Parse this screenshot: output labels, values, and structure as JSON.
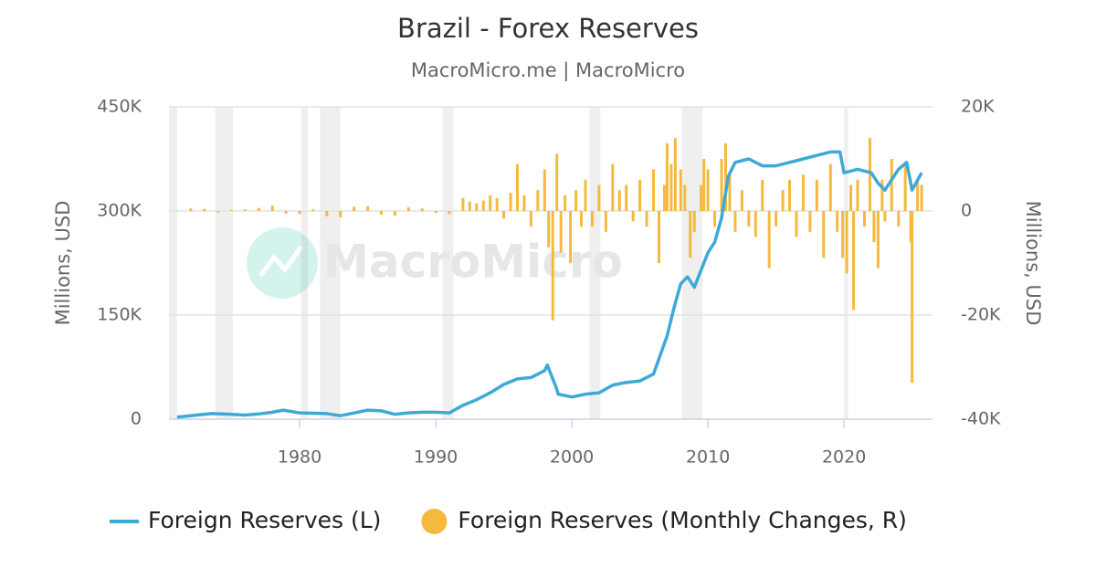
{
  "chart_data": {
    "type": "combo",
    "title": "Brazil - Forex Reserves",
    "subtitle": "MacroMicro.me | MacroMicro",
    "watermark": "MacroMicro",
    "y_label": "Millions, USD",
    "y2_label": "Millions, USD",
    "xlim": [
      1970.4,
      2026.5
    ],
    "xticks": [
      1980,
      1990,
      2000,
      2010,
      2020
    ],
    "ylim": [
      0,
      450000
    ],
    "yticks": [
      0,
      {
        "value": 150000,
        "label": "150K"
      },
      {
        "value": 300000,
        "label": "300K"
      },
      {
        "value": 450000,
        "label": "450K"
      }
    ],
    "y2lim": [
      -40000,
      20000
    ],
    "y2ticks": [
      {
        "value": -40000,
        "label": "-40K"
      },
      {
        "value": -20000,
        "label": "-20K"
      },
      0,
      {
        "value": 20000,
        "label": "20K"
      }
    ],
    "grid": true,
    "shaded_periods": [
      [
        1970.4,
        1971.0
      ],
      [
        1973.8,
        1975.1
      ],
      [
        1980.1,
        1980.6
      ],
      [
        1981.5,
        1983.0
      ],
      [
        1990.5,
        1991.3
      ],
      [
        2001.3,
        2002.1
      ],
      [
        2008.1,
        2009.6
      ],
      [
        2020.0,
        2020.3
      ]
    ],
    "series": [
      {
        "name": "Foreign Reserves (L)",
        "type": "line",
        "color": "#3fa9d6",
        "x": [
          1971,
          1973.5,
          1975,
          1976,
          1977,
          1978,
          1978.8,
          1980,
          1982,
          1983,
          1984,
          1985,
          1986,
          1987,
          1988,
          1989,
          1990,
          1991,
          1992,
          1993,
          1994,
          1995,
          1996,
          1997,
          1998,
          1998.2,
          1998.9,
          1999,
          2000,
          2001,
          2002,
          2003,
          2004,
          2005,
          2006,
          2007,
          2007.5,
          2008,
          2008.5,
          2009,
          2009.5,
          2010,
          2010.5,
          2011,
          2011.5,
          2012,
          2013,
          2014,
          2015,
          2016,
          2017,
          2018,
          2019,
          2019.7,
          2020,
          2021,
          2022,
          2022.5,
          2023,
          2024,
          2024.6,
          2025,
          2025.7
        ],
        "values": [
          3000,
          8000,
          7000,
          6000,
          7500,
          10000,
          13000,
          9000,
          8000,
          5000,
          9000,
          13000,
          12000,
          7000,
          9000,
          10000,
          10000,
          9000,
          20000,
          28000,
          38000,
          50000,
          58000,
          60000,
          70000,
          78000,
          43000,
          36000,
          32000,
          36000,
          38000,
          49000,
          53000,
          55000,
          65000,
          120000,
          160000,
          195000,
          205000,
          190000,
          215000,
          240000,
          255000,
          290000,
          350000,
          370000,
          375000,
          365000,
          365000,
          370000,
          375000,
          380000,
          385000,
          385000,
          355000,
          360000,
          355000,
          340000,
          330000,
          360000,
          370000,
          330000,
          355000
        ]
      },
      {
        "name": "Foreign Reserves (Monthly Changes, R)",
        "type": "bar",
        "axis": "y2",
        "color": "#f5b93f",
        "x": [
          1972,
          1973,
          1974,
          1975,
          1976,
          1977,
          1978,
          1979,
          1980,
          1981,
          1982,
          1983,
          1984,
          1985,
          1986,
          1987,
          1988,
          1989,
          1990,
          1991,
          1992,
          1992.5,
          1993,
          1993.5,
          1994,
          1994.5,
          1995,
          1995.5,
          1996,
          1996.5,
          1997,
          1997.5,
          1998,
          1998.3,
          1998.6,
          1998.9,
          1999.2,
          1999.5,
          1999.9,
          2000.3,
          2000.7,
          2001,
          2001.5,
          2002,
          2002.5,
          2003,
          2003.5,
          2004,
          2004.5,
          2005,
          2005.5,
          2006,
          2006.4,
          2006.8,
          2007,
          2007.3,
          2007.6,
          2008,
          2008.3,
          2008.7,
          2009,
          2009.5,
          2009.7,
          2010,
          2010.5,
          2011,
          2011.3,
          2011.6,
          2012,
          2012.5,
          2013,
          2013.5,
          2014,
          2014.5,
          2015,
          2015.5,
          2016,
          2016.5,
          2017,
          2017.5,
          2018,
          2018.5,
          2019,
          2019.5,
          2019.9,
          2020.2,
          2020.5,
          2020.7,
          2021,
          2021.5,
          2021.9,
          2022.2,
          2022.5,
          2022.8,
          2023,
          2023.5,
          2024,
          2024.5,
          2024.9,
          2025.0,
          2025.4,
          2025.7
        ],
        "values": [
          500,
          400,
          -300,
          200,
          300,
          600,
          1000,
          -500,
          -600,
          300,
          -1000,
          -1200,
          800,
          900,
          -700,
          -900,
          700,
          500,
          -400,
          -600,
          2500,
          1800,
          1500,
          2000,
          3000,
          2500,
          -1500,
          3500,
          9000,
          3000,
          -3000,
          4000,
          8000,
          -7000,
          -21000,
          11000,
          -8000,
          3000,
          -10000,
          4000,
          -3000,
          6000,
          -3000,
          5000,
          -4000,
          9000,
          4000,
          5000,
          -2000,
          6000,
          -3000,
          8000,
          -10000,
          5000,
          13000,
          9000,
          14000,
          8000,
          5000,
          -9000,
          -4000,
          5000,
          10000,
          8000,
          -3000,
          10000,
          13000,
          7000,
          -4000,
          4000,
          -3000,
          -5000,
          6000,
          -11000,
          -3000,
          4000,
          6000,
          -5000,
          7000,
          -4000,
          6000,
          -9000,
          9000,
          -4000,
          -9000,
          -12000,
          5000,
          -19000,
          6000,
          -3000,
          14000,
          -6000,
          -11000,
          6000,
          -2000,
          10000,
          -3000,
          9000,
          -6000,
          -33000,
          6000,
          5000
        ]
      }
    ]
  }
}
